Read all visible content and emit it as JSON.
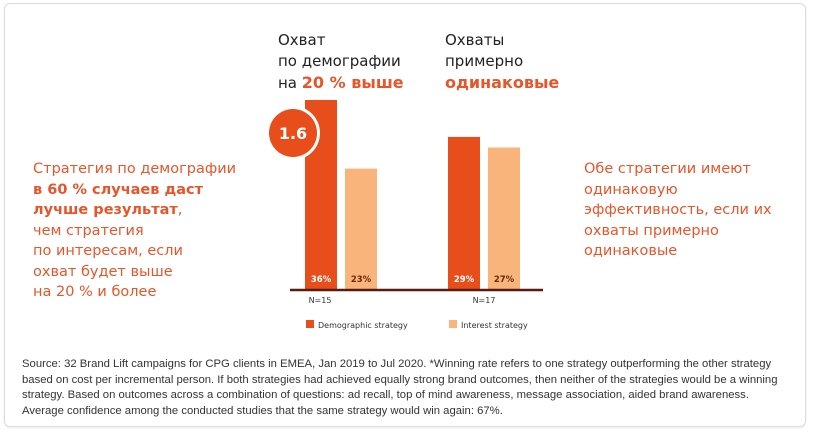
{
  "headings": [
    {
      "line1": "Охват",
      "line2": "по демографии",
      "line3_plain": "на ",
      "line3_bold": "20 % выше"
    },
    {
      "line1": "Охваты",
      "line2": "примерно",
      "line3_plain": "",
      "line3_bold": "одинаковые"
    }
  ],
  "left_text": {
    "l1": "Стратегия по демографии",
    "l2": "в 60 % случаев даст",
    "l3": "лучше результат",
    "l3_tail": ",",
    "l4": "чем стратегия",
    "l5": "по интересам, если",
    "l6": "охват будет выше",
    "l7": "на 20 % и более"
  },
  "right_text": {
    "l1": "Обе стратегии имеют",
    "l2": "одинаковую",
    "l3": "эффективность, если их",
    "l4": "охваты примерно",
    "l5": "одинаковые"
  },
  "badge": "1.6",
  "source": "Source: 32 Brand Lift campaigns for CPG clients in EMEA, Jan 2019 to Jul 2020. *Winning rate refers to one strategy outperforming the other strategy based on cost per incremental person. If both strategies had achieved equally strong brand outcomes, then neither of the strategies would be a winning strategy.  Based on outcomes across a combination of questions: ad recall, top of mind awareness, message association, aided brand awareness. Average confidence among the conducted studies that the same strategy would win again: 67%.",
  "colors": {
    "demographic": "#e84e1b",
    "interest": "#f9b47c",
    "axis": "#5a1a10",
    "text_accent": "#e8552a"
  },
  "chart_data": {
    "type": "bar",
    "categories": [
      "N=15",
      "N=17"
    ],
    "series": [
      {
        "name": "Demographic strategy",
        "values": [
          36,
          29
        ],
        "labels": [
          "36%",
          "29%"
        ]
      },
      {
        "name": "Interest strategy",
        "values": [
          23,
          27
        ],
        "labels": [
          "23%",
          "27%"
        ]
      }
    ],
    "ylim": [
      0,
      40
    ],
    "legend": "bottom"
  }
}
